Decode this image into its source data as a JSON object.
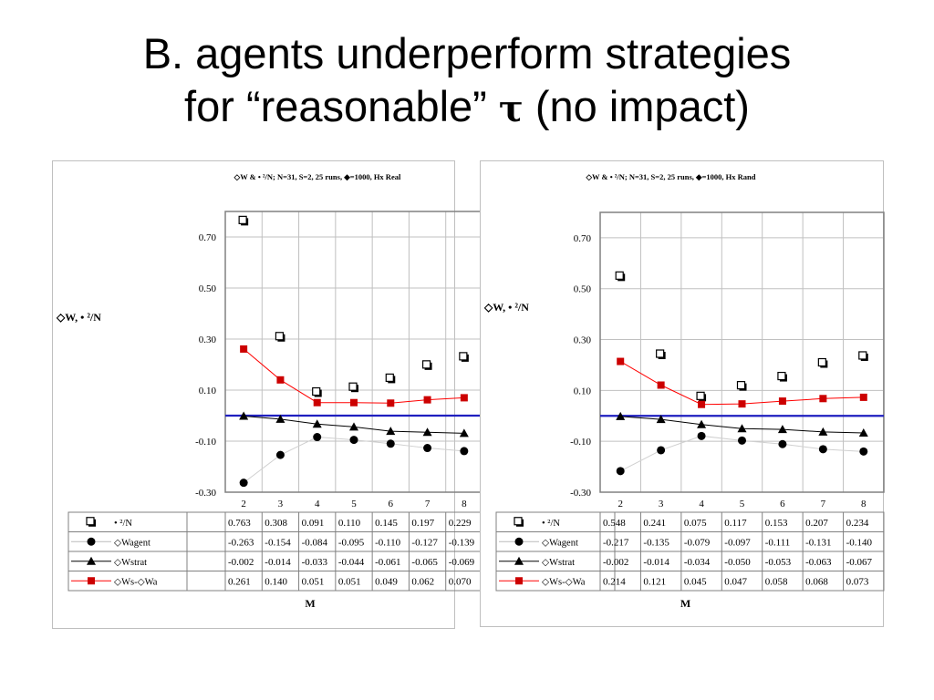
{
  "slide": {
    "title_line1": "B. agents underperform strategies",
    "title_line2_pre": "for “reasonable” ",
    "title_tau": "τ",
    "title_line2_post": " (no impact)"
  },
  "chart_data": [
    {
      "type": "line",
      "title": "◇W & • ²/N; N=31, S=2, 25 runs, ◆=1000, Hx Real",
      "ylabel": "◇W, • ²/N",
      "xlabel": "M",
      "categories": [
        "2",
        "3",
        "4",
        "5",
        "6",
        "7",
        "8"
      ],
      "ylim": [
        -0.3,
        0.8
      ],
      "yticks": [
        -0.3,
        -0.1,
        0.1,
        0.3,
        0.5,
        0.7
      ],
      "ytick_labels": [
        "-0.30",
        "-0.10",
        "0.10",
        "0.30",
        "0.50",
        "0.70"
      ],
      "grid": true,
      "reference_line": 0,
      "series": [
        {
          "name": "• ²/N",
          "marker": "square-open",
          "line": false,
          "color": "#000000",
          "values": [
            0.763,
            0.308,
            0.091,
            0.11,
            0.145,
            0.197,
            0.229
          ],
          "labels": [
            "0.763",
            "0.308",
            "0.091",
            "0.110",
            "0.145",
            "0.197",
            "0.229"
          ]
        },
        {
          "name": "◇Wagent",
          "marker": "circle",
          "line": true,
          "color": "#d0d0d0",
          "marker_color": "#000000",
          "values": [
            -0.263,
            -0.154,
            -0.084,
            -0.095,
            -0.11,
            -0.127,
            -0.139
          ],
          "labels": [
            "-0.263",
            "-0.154",
            "-0.084",
            "-0.095",
            "-0.110",
            "-0.127",
            "-0.139"
          ]
        },
        {
          "name": "◇Wstrat",
          "marker": "triangle",
          "line": true,
          "color": "#000000",
          "values": [
            -0.002,
            -0.014,
            -0.033,
            -0.044,
            -0.061,
            -0.065,
            -0.069
          ],
          "labels": [
            "-0.002",
            "-0.014",
            "-0.033",
            "-0.044",
            "-0.061",
            "-0.065",
            "-0.069"
          ]
        },
        {
          "name": "◇Ws-◇Wa",
          "marker": "square",
          "line": true,
          "color": "#ff0000",
          "marker_color": "#cc0000",
          "values": [
            0.261,
            0.14,
            0.051,
            0.051,
            0.049,
            0.062,
            0.07
          ],
          "labels": [
            "0.261",
            "0.140",
            "0.051",
            "0.051",
            "0.049",
            "0.062",
            "0.070"
          ]
        }
      ]
    },
    {
      "type": "line",
      "title": "◇W & • ²/N; N=31, S=2, 25 runs, ◆=1000, Hx Rand",
      "ylabel": "◇W, • ²/N",
      "xlabel": "M",
      "categories": [
        "2",
        "3",
        "4",
        "5",
        "6",
        "7",
        "8"
      ],
      "ylim": [
        -0.3,
        0.8
      ],
      "yticks": [
        -0.3,
        -0.1,
        0.1,
        0.3,
        0.5,
        0.7
      ],
      "ytick_labels": [
        "-0.30",
        "-0.10",
        "0.10",
        "0.30",
        "0.50",
        "0.70"
      ],
      "grid": true,
      "reference_line": 0,
      "series": [
        {
          "name": "• ²/N",
          "marker": "square-open",
          "line": false,
          "color": "#000000",
          "values": [
            0.548,
            0.241,
            0.075,
            0.117,
            0.153,
            0.207,
            0.234
          ],
          "labels": [
            "0.548",
            "0.241",
            "0.075",
            "0.117",
            "0.153",
            "0.207",
            "0.234"
          ]
        },
        {
          "name": "◇Wagent",
          "marker": "circle",
          "line": true,
          "color": "#d0d0d0",
          "marker_color": "#000000",
          "values": [
            -0.217,
            -0.135,
            -0.079,
            -0.097,
            -0.111,
            -0.131,
            -0.14
          ],
          "labels": [
            "-0.217",
            "-0.135",
            "-0.079",
            "-0.097",
            "-0.111",
            "-0.131",
            "-0.140"
          ]
        },
        {
          "name": "◇Wstrat",
          "marker": "triangle",
          "line": true,
          "color": "#000000",
          "values": [
            -0.002,
            -0.014,
            -0.034,
            -0.05,
            -0.053,
            -0.063,
            -0.067
          ],
          "labels": [
            "-0.002",
            "-0.014",
            "-0.034",
            "-0.050",
            "-0.053",
            "-0.063",
            "-0.067"
          ]
        },
        {
          "name": "◇Ws-◇Wa",
          "marker": "square",
          "line": true,
          "color": "#ff0000",
          "marker_color": "#cc0000",
          "values": [
            0.214,
            0.121,
            0.045,
            0.047,
            0.058,
            0.068,
            0.073
          ],
          "labels": [
            "0.214",
            "0.121",
            "0.045",
            "0.047",
            "0.058",
            "0.068",
            "0.073"
          ]
        }
      ]
    }
  ],
  "colors": {
    "zero_line": "#1f1fbf",
    "grid": "#c0c0c0",
    "frame": "#808080"
  }
}
